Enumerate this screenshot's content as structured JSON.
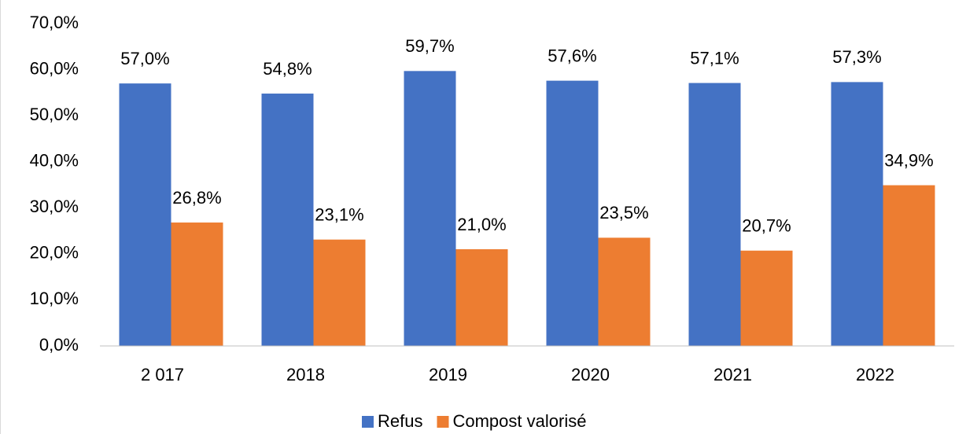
{
  "chart_data": {
    "type": "bar",
    "categories": [
      "2 017",
      "2018",
      "2019",
      "2020",
      "2021",
      "2022"
    ],
    "series": [
      {
        "name": "Refus",
        "color": "#4472c4",
        "values": [
          57.0,
          54.8,
          59.7,
          57.6,
          57.1,
          57.3
        ],
        "value_labels": [
          "57,0%",
          "54,8%",
          "59,7%",
          "57,6%",
          "57,1%",
          "57,3%"
        ]
      },
      {
        "name": "Compost valorisé",
        "color": "#ed7d31",
        "values": [
          26.8,
          23.1,
          21.0,
          23.5,
          20.7,
          34.9
        ],
        "value_labels": [
          "26,8%",
          "23,1%",
          "21,0%",
          "23,5%",
          "20,7%",
          "34,9%"
        ]
      }
    ],
    "ylim": [
      0,
      70
    ],
    "yticks": [
      {
        "value": 0,
        "label": "0,0%"
      },
      {
        "value": 10,
        "label": "10,0%"
      },
      {
        "value": 20,
        "label": "20,0%"
      },
      {
        "value": 30,
        "label": "30,0%"
      },
      {
        "value": 40,
        "label": "40,0%"
      },
      {
        "value": 50,
        "label": "50,0%"
      },
      {
        "value": 60,
        "label": "60,0%"
      },
      {
        "value": 70,
        "label": "70,0%"
      }
    ],
    "grid": false,
    "legend": "bottom"
  }
}
